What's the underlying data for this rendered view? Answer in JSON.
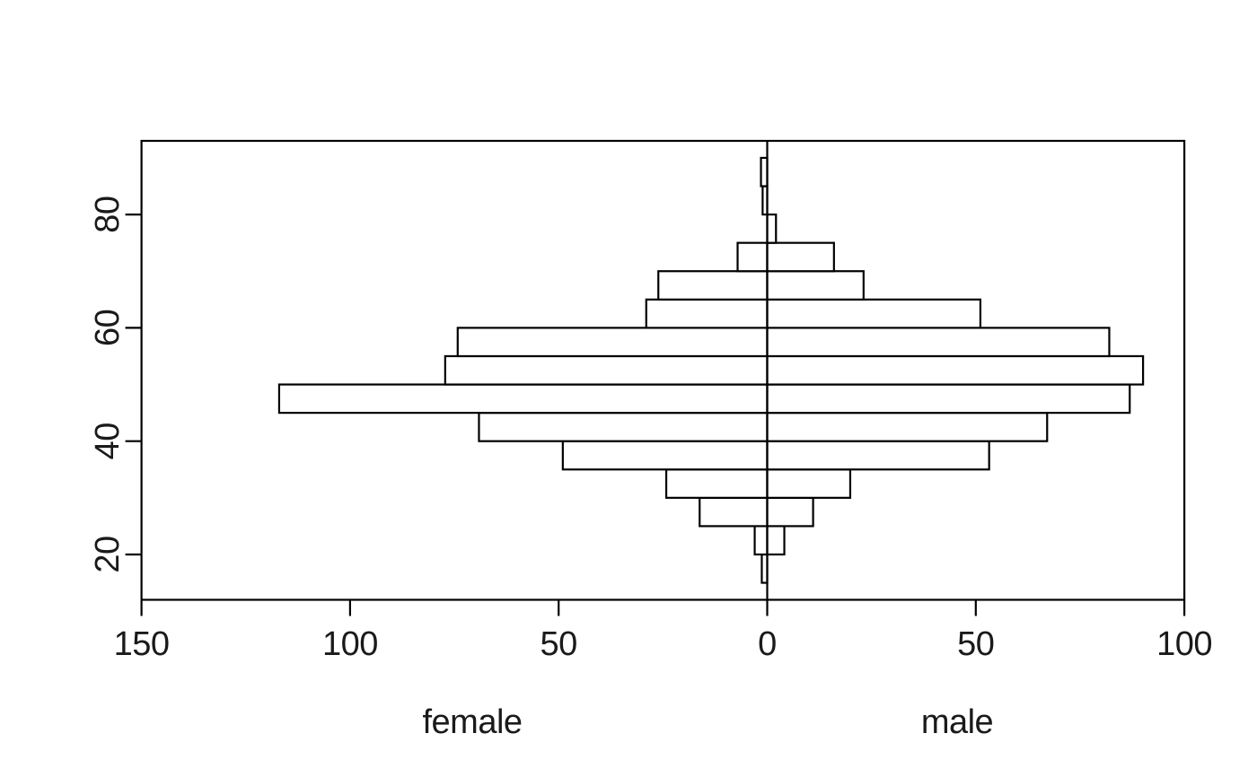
{
  "figure": {
    "background": "#ffffff",
    "title": ""
  },
  "chart_data": {
    "type": "bar",
    "subtype": "population_pyramid",
    "orientation": "horizontal",
    "title": "",
    "xlabel": "",
    "ylabel": "",
    "age_groups": [
      "15-20",
      "20-25",
      "25-30",
      "30-35",
      "35-40",
      "40-45",
      "45-50",
      "50-55",
      "55-60",
      "60-65",
      "65-70",
      "70-75",
      "75-80",
      "80-85",
      "85-90"
    ],
    "bin_edges": [
      15,
      20,
      25,
      30,
      35,
      40,
      45,
      50,
      55,
      60,
      65,
      70,
      75,
      80,
      85,
      90
    ],
    "series": [
      {
        "name": "female",
        "side": "left",
        "values": [
          1.3,
          3.0,
          16.2,
          24.2,
          49.0,
          69.1,
          117.0,
          77.2,
          74.2,
          29.0,
          26.1,
          7.1,
          0,
          1.1,
          1.5
        ]
      },
      {
        "name": "male",
        "side": "right",
        "values": [
          0,
          4.1,
          11.0,
          19.9,
          53.2,
          67.1,
          86.9,
          90.1,
          82.0,
          51.1,
          23.1,
          16.0,
          2.1,
          0,
          0
        ]
      }
    ],
    "x_axis": {
      "lim": [
        -150,
        100
      ],
      "ticks": [
        -150,
        -100,
        -50,
        0,
        50,
        100
      ],
      "tick_labels": [
        "150",
        "100",
        "50",
        "0",
        "50",
        "100"
      ]
    },
    "y_axis": {
      "lim": [
        12,
        93
      ],
      "ticks": [
        20,
        40,
        60,
        80
      ],
      "tick_labels": [
        "20",
        "40",
        "60",
        "80"
      ]
    },
    "zero_line": true,
    "grid": false,
    "legend": "none",
    "bar_fill": "#ffffff",
    "bar_stroke": "#000000",
    "axis_color": "#000000",
    "text_color": "#1a1a1a"
  }
}
